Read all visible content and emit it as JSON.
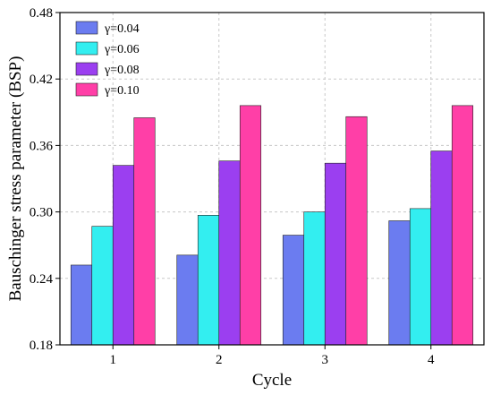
{
  "chart_data": {
    "type": "bar",
    "xlabel": "Cycle",
    "ylabel": "Bauschinger stress parameter (BSP)",
    "categories": [
      "1",
      "2",
      "3",
      "4"
    ],
    "ylim": [
      0.18,
      0.48
    ],
    "yticks": [
      "0.18",
      "0.24",
      "0.30",
      "0.36",
      "0.42",
      "0.48"
    ],
    "grid": true,
    "legend_position": "top-left",
    "series": [
      {
        "name": "γ=0.04",
        "color": "#6b7cf0",
        "values": [
          0.252,
          0.261,
          0.279,
          0.292
        ]
      },
      {
        "name": "γ=0.06",
        "color": "#33eef0",
        "values": [
          0.287,
          0.297,
          0.3,
          0.303
        ]
      },
      {
        "name": "γ=0.08",
        "color": "#9b3ff0",
        "values": [
          0.342,
          0.346,
          0.344,
          0.355
        ]
      },
      {
        "name": "γ=0.10",
        "color": "#ff3fa7",
        "values": [
          0.385,
          0.396,
          0.386,
          0.396
        ]
      }
    ]
  }
}
